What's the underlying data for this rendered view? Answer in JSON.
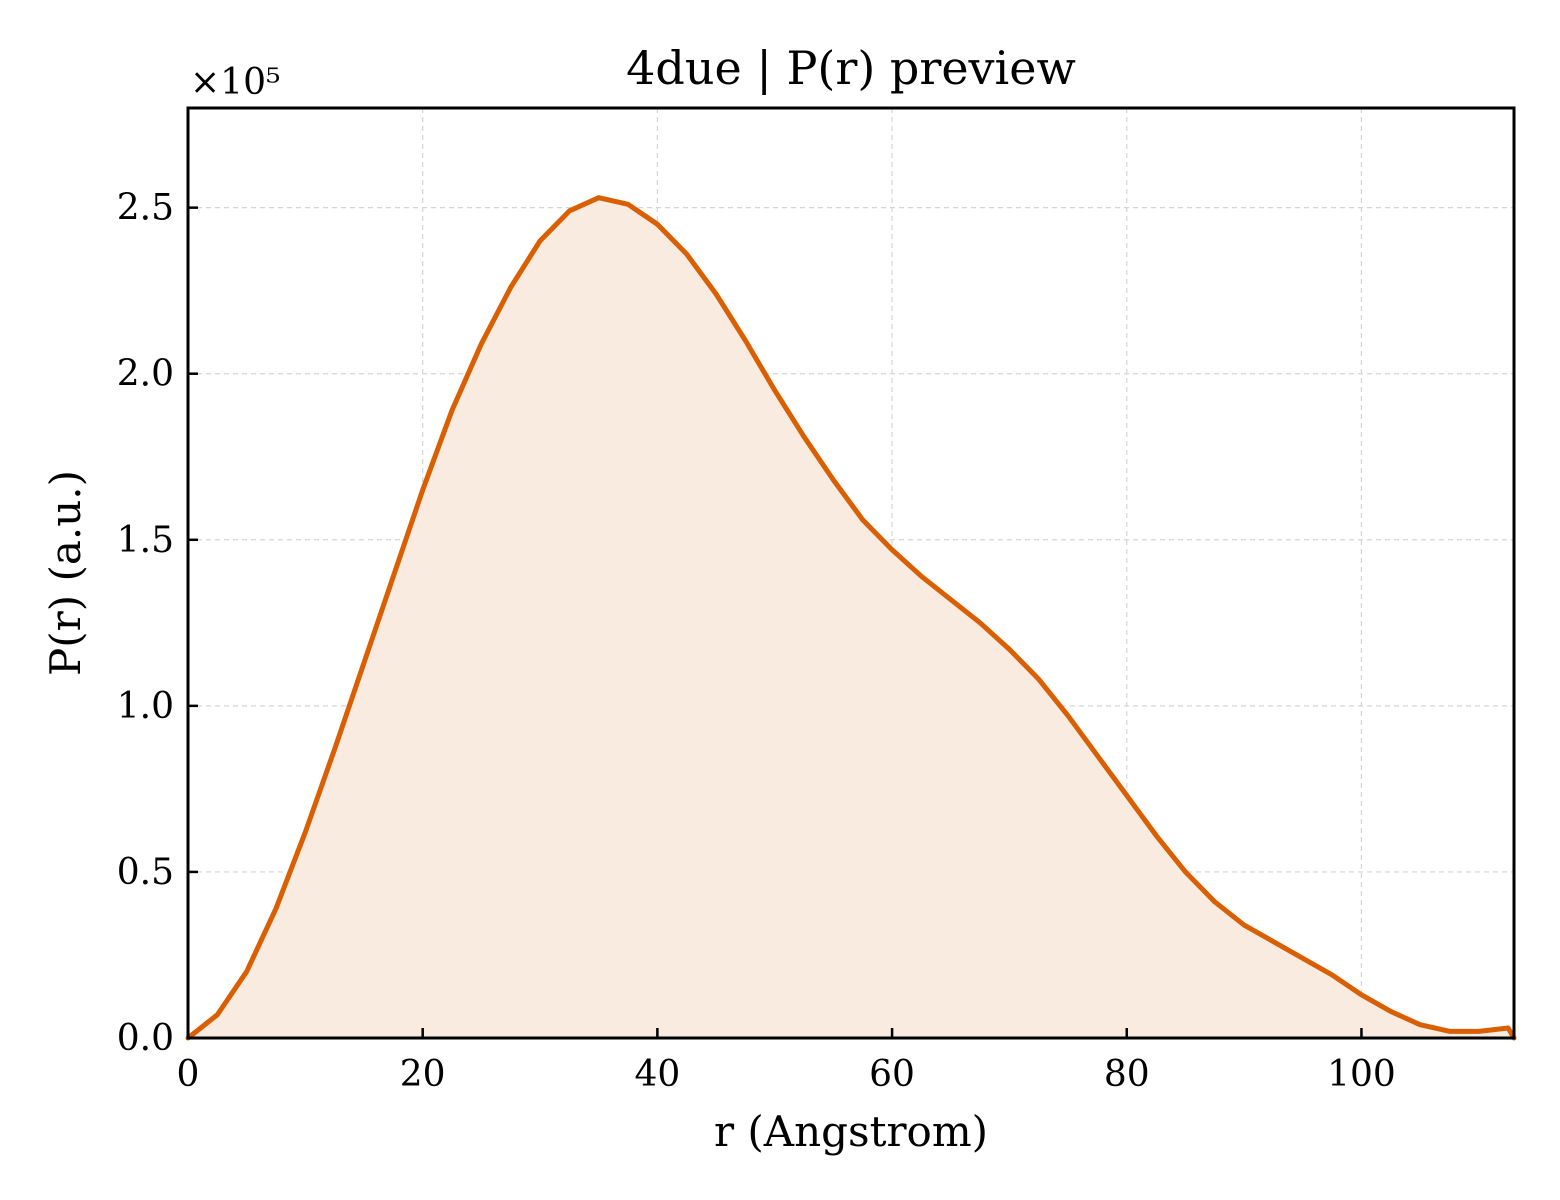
{
  "chart_data": {
    "type": "area",
    "title": "4due | P(r) preview",
    "xlabel": "r (Angstrom)",
    "ylabel": "P(r) (a.u.)",
    "y_multiplier_label": "×10⁵",
    "xlim": [
      0,
      113
    ],
    "ylim": [
      0,
      2.8
    ],
    "x_ticks": [
      0,
      20,
      40,
      60,
      80,
      100
    ],
    "x_tick_labels": [
      "0",
      "20",
      "40",
      "60",
      "80",
      "100"
    ],
    "y_ticks": [
      0,
      0.5,
      1.0,
      1.5,
      2.0,
      2.5
    ],
    "y_tick_labels": [
      "0.0",
      "0.5",
      "1.0",
      "1.5",
      "2.0",
      "2.5"
    ],
    "grid": true,
    "colors": {
      "line": "#d95f02",
      "fill": "#f9ebe0",
      "grid": "#d5d5d5",
      "axis": "#000000"
    },
    "series": [
      {
        "x": [
          0,
          2.5,
          5,
          7.5,
          10,
          12.5,
          15,
          17.5,
          20,
          22.5,
          25,
          27.5,
          30,
          32.5,
          35,
          37.5,
          40,
          42.5,
          45,
          47.5,
          50,
          52.5,
          55,
          57.5,
          60,
          62.5,
          65,
          67.5,
          70,
          72.5,
          75,
          77.5,
          80,
          82.5,
          85,
          87.5,
          90,
          92.5,
          95,
          97.5,
          100,
          102.5,
          105,
          107.5,
          110,
          112.5,
          113
        ],
        "y": [
          0.0,
          0.07,
          0.2,
          0.39,
          0.62,
          0.87,
          1.13,
          1.39,
          1.65,
          1.89,
          2.09,
          2.26,
          2.4,
          2.49,
          2.53,
          2.51,
          2.45,
          2.36,
          2.24,
          2.1,
          1.95,
          1.81,
          1.68,
          1.56,
          1.47,
          1.39,
          1.32,
          1.25,
          1.17,
          1.08,
          0.97,
          0.85,
          0.73,
          0.61,
          0.5,
          0.41,
          0.34,
          0.29,
          0.24,
          0.19,
          0.13,
          0.08,
          0.04,
          0.02,
          0.02,
          0.03,
          0.0
        ]
      }
    ]
  }
}
